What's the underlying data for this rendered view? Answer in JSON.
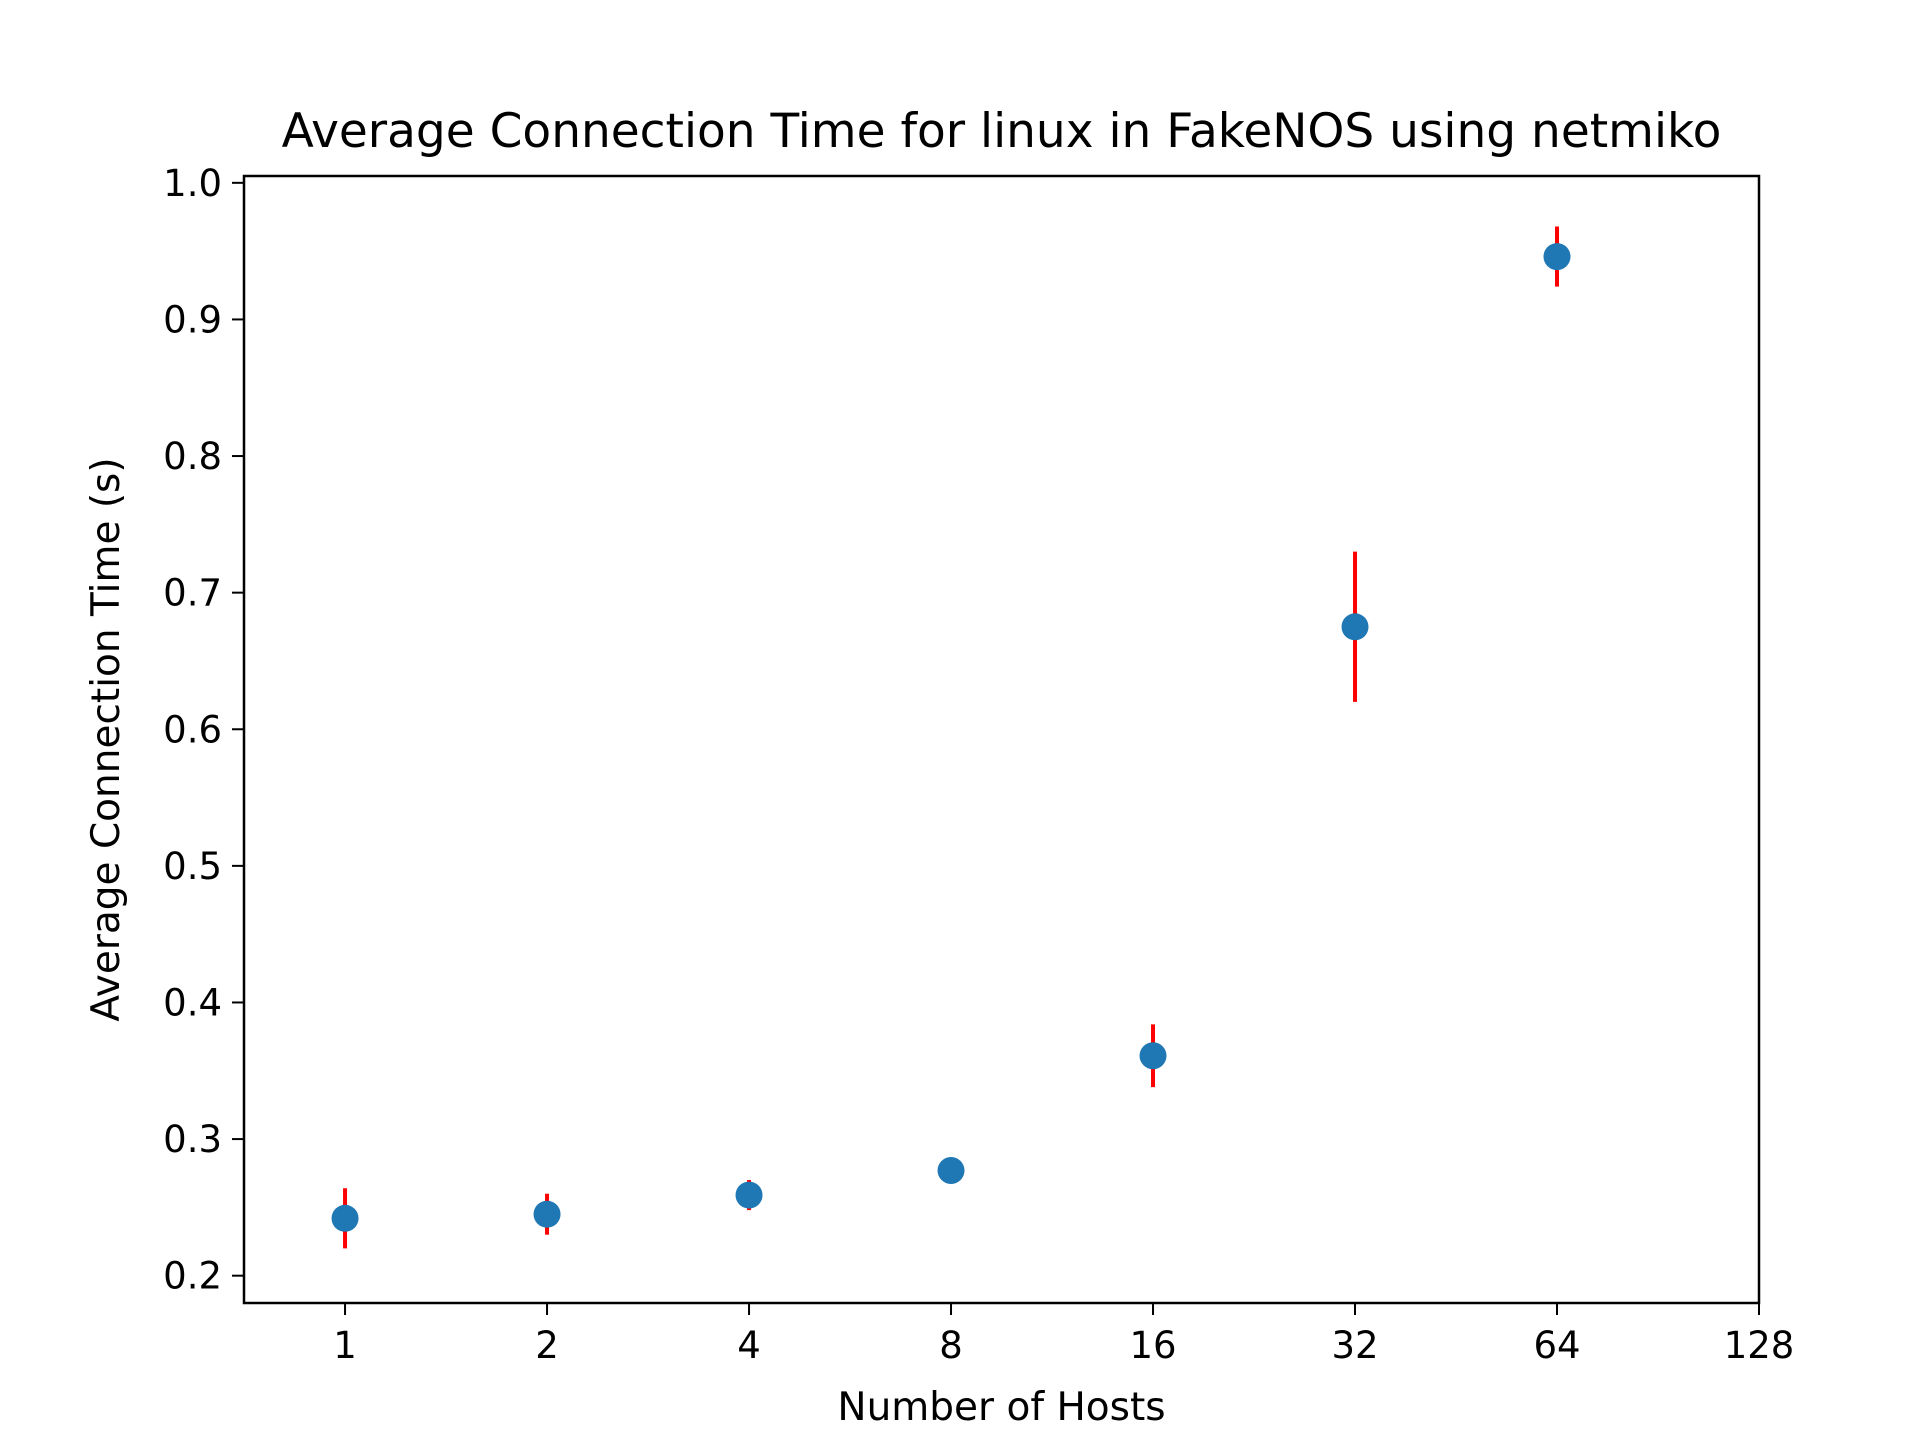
{
  "chart_data": {
    "type": "scatter",
    "title": "Average Connection Time for linux in FakeNOS using netmiko",
    "xlabel": "Number of Hosts",
    "ylabel": "Average Connection Time (s)",
    "x_scale": "log2",
    "xlim": [
      0.707,
      128
    ],
    "ylim": [
      0.18,
      1.005
    ],
    "xticks": [
      1,
      2,
      4,
      8,
      16,
      32,
      64,
      128
    ],
    "xtick_labels": [
      "1",
      "2",
      "4",
      "8",
      "16",
      "32",
      "64",
      "128"
    ],
    "yticks": [
      0.2,
      0.3,
      0.4,
      0.5,
      0.6,
      0.7,
      0.8,
      0.9,
      1.0
    ],
    "ytick_labels": [
      "0.2",
      "0.3",
      "0.4",
      "0.5",
      "0.6",
      "0.7",
      "0.8",
      "0.9",
      "1.0"
    ],
    "grid": false,
    "legend": "none",
    "series": [
      {
        "x": [
          1,
          2,
          4,
          8,
          16,
          32,
          64
        ],
        "y": [
          0.242,
          0.245,
          0.259,
          0.277,
          0.361,
          0.675,
          0.946
        ],
        "yerr": [
          0.022,
          0.015,
          0.011,
          0.004,
          0.023,
          0.055,
          0.022
        ],
        "color": "#1f77b4",
        "error_color": "#ff0000"
      }
    ]
  }
}
